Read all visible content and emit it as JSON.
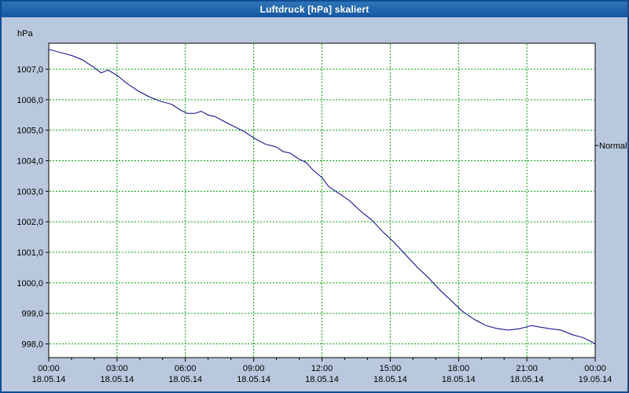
{
  "window": {
    "title": "Luftdruck [hPa] skaliert"
  },
  "chart_data": {
    "type": "line",
    "title": "Luftdruck [hPa] skaliert",
    "unit_label": "hPa",
    "xlabel": "",
    "ylabel": "hPa",
    "xlim": [
      0,
      24
    ],
    "ylim": [
      997.55,
      1007.85
    ],
    "grid": {
      "show": true,
      "style": "dashed"
    },
    "series": [
      {
        "name": "Luftdruck",
        "color": "#00008c",
        "x": [
          0,
          0.5,
          1,
          1.5,
          2,
          2.3,
          2.6,
          3,
          3.4,
          3.9,
          4.4,
          4.9,
          5.4,
          5.8,
          6.1,
          6.4,
          6.7,
          7,
          7.3,
          7.8,
          8.2,
          8.6,
          9,
          9.5,
          10,
          10.3,
          10.6,
          11,
          11.3,
          11.6,
          12,
          12.3,
          12.7,
          13.2,
          13.7,
          14.2,
          14.7,
          15.2,
          15.7,
          16.2,
          16.7,
          17.2,
          17.7,
          18.2,
          18.7,
          19.2,
          19.7,
          20.2,
          20.7,
          21.2,
          21.6,
          22,
          22.5,
          23,
          23.5,
          24
        ],
        "y": [
          1007.65,
          1007.55,
          1007.45,
          1007.3,
          1007.05,
          1006.88,
          1006.97,
          1006.8,
          1006.55,
          1006.3,
          1006.1,
          1005.95,
          1005.85,
          1005.65,
          1005.55,
          1005.55,
          1005.62,
          1005.5,
          1005.45,
          1005.25,
          1005.1,
          1004.95,
          1004.75,
          1004.55,
          1004.45,
          1004.3,
          1004.25,
          1004.05,
          1003.95,
          1003.7,
          1003.45,
          1003.15,
          1002.95,
          1002.7,
          1002.35,
          1002.05,
          1001.65,
          1001.3,
          1000.9,
          1000.5,
          1000.15,
          999.75,
          999.4,
          999.05,
          998.8,
          998.6,
          998.5,
          998.45,
          998.5,
          998.6,
          998.55,
          998.5,
          998.45,
          998.3,
          998.2,
          998.0
        ]
      }
    ],
    "yticks": [
      {
        "value": 1007,
        "label": "1007,0"
      },
      {
        "value": 1006,
        "label": "1006,0"
      },
      {
        "value": 1005,
        "label": "1005,0"
      },
      {
        "value": 1004,
        "label": "1004,0"
      },
      {
        "value": 1003,
        "label": "1003,0"
      },
      {
        "value": 1002,
        "label": "1002,0"
      },
      {
        "value": 1001,
        "label": "1001,0"
      },
      {
        "value": 1000,
        "label": "1000,0"
      },
      {
        "value": 999,
        "label": "999,0"
      },
      {
        "value": 998,
        "label": "998,0"
      }
    ],
    "xticks": [
      {
        "hour": 0,
        "time": "00:00",
        "date": "18.05.14"
      },
      {
        "hour": 3,
        "time": "03:00",
        "date": "18.05.14"
      },
      {
        "hour": 6,
        "time": "06:00",
        "date": "18.05.14"
      },
      {
        "hour": 9,
        "time": "09:00",
        "date": "18.05.14"
      },
      {
        "hour": 12,
        "time": "12:00",
        "date": "18.05.14"
      },
      {
        "hour": 15,
        "time": "15:00",
        "date": "18.05.14"
      },
      {
        "hour": 18,
        "time": "18:00",
        "date": "18.05.14"
      },
      {
        "hour": 21,
        "time": "21:00",
        "date": "18.05.14"
      },
      {
        "hour": 24,
        "time": "00:00",
        "date": "19.05.14"
      }
    ],
    "annotations": [
      {
        "label": "Normal",
        "value": 1004.5,
        "side": "right"
      }
    ],
    "colors": {
      "line": "#00008c",
      "grid": "#00a000",
      "plot_bg": "#ffffff",
      "axis": "#000000",
      "text": "#000000",
      "window_bg": "#b9c8dd",
      "titlebar": "#1f63ac",
      "titlebar_text": "#ffffff"
    }
  }
}
